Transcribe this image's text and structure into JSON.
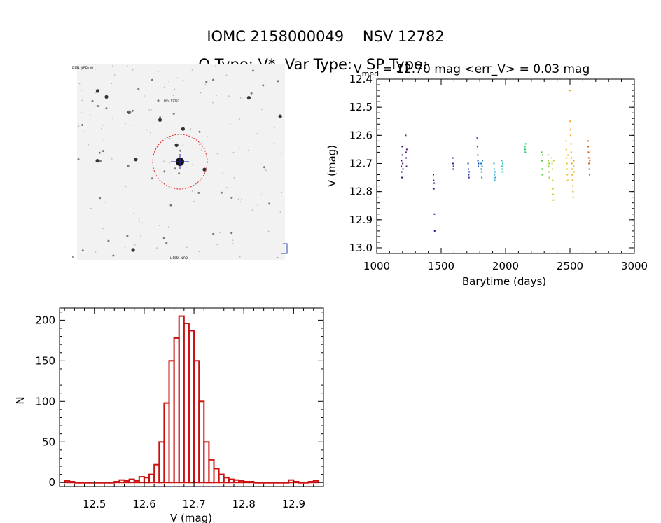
{
  "header": {
    "object_id": "IOMC 2158000049",
    "alt_name": "NSV 12782",
    "o_type_label": "O Type: V*",
    "var_type_label": "Var Type:",
    "sp_type_label": "SP Type:"
  },
  "image_panel": {
    "label_top_left": "DSS1 NIRD red",
    "label_target": "NSV 12782",
    "label_bottom_left": "N",
    "label_bottom_center": "L 1955 NIRD",
    "label_bottom_right": "E"
  },
  "colors": {
    "histogram": "#cc1111",
    "image_background": "#f2f2f2",
    "target_circle": "#dd2222",
    "target_cross": "#2222aa",
    "axes": "#000000"
  },
  "chart_data": [
    {
      "type": "scatter",
      "title": "V_med = 12.70 mag <err_V> = 0.03 mag",
      "title_parts": {
        "v": "V",
        "sub": "med",
        "rest": " = 12.70 mag <err_V> = 0.03 mag"
      },
      "xlabel": "Barytime (days)",
      "ylabel": "V (mag)",
      "xlim": [
        1000,
        3000
      ],
      "ylim": [
        13.02,
        12.4
      ],
      "y_inverted": true,
      "xticks": [
        1000,
        1500,
        2000,
        2500,
        3000
      ],
      "yticks": [
        12.4,
        12.5,
        12.6,
        12.7,
        12.8,
        12.9,
        13.0
      ],
      "ytick_labels": [
        "12.4",
        "12.5",
        "12.6",
        "12.7",
        "12.8",
        "12.9",
        "13.0"
      ],
      "grid": false,
      "groups": [
        {
          "color": "#3a0a6a",
          "points": [
            [
              1190,
              12.71
            ],
            [
              1192,
              12.69
            ],
            [
              1194,
              12.73
            ],
            [
              1196,
              12.75
            ],
            [
              1198,
              12.64
            ],
            [
              1200,
              12.67
            ],
            [
              1202,
              12.7
            ],
            [
              1204,
              12.72
            ]
          ]
        },
        {
          "color": "#5a1a8a",
          "points": [
            [
              1225,
              12.6
            ],
            [
              1227,
              12.66
            ],
            [
              1229,
              12.68
            ],
            [
              1231,
              12.71
            ],
            [
              1233,
              12.65
            ]
          ]
        },
        {
          "color": "#2a1090",
          "points": [
            [
              1440,
              12.74
            ],
            [
              1442,
              12.76
            ],
            [
              1444,
              12.79
            ],
            [
              1446,
              12.77
            ],
            [
              1448,
              12.88
            ],
            [
              1450,
              12.94
            ]
          ]
        },
        {
          "color": "#22209a",
          "points": [
            [
              1590,
              12.68
            ],
            [
              1592,
              12.7
            ],
            [
              1594,
              12.72
            ],
            [
              1596,
              12.71
            ]
          ]
        },
        {
          "color": "#2030a8",
          "points": [
            [
              1710,
              12.7
            ],
            [
              1712,
              12.72
            ],
            [
              1714,
              12.74
            ],
            [
              1716,
              12.75
            ],
            [
              1718,
              12.73
            ]
          ]
        },
        {
          "color": "#1c50b8",
          "points": [
            [
              1780,
              12.61
            ],
            [
              1782,
              12.64
            ],
            [
              1784,
              12.67
            ],
            [
              1786,
              12.69
            ],
            [
              1788,
              12.71
            ],
            [
              1790,
              12.7
            ]
          ]
        },
        {
          "color": "#1580c8",
          "points": [
            [
              1810,
              12.7
            ],
            [
              1812,
              12.72
            ],
            [
              1814,
              12.73
            ],
            [
              1816,
              12.75
            ],
            [
              1818,
              12.71
            ],
            [
              1820,
              12.69
            ]
          ]
        },
        {
          "color": "#10a8c8",
          "points": [
            [
              1910,
              12.7
            ],
            [
              1912,
              12.72
            ],
            [
              1914,
              12.74
            ],
            [
              1916,
              12.76
            ],
            [
              1918,
              12.73
            ],
            [
              1920,
              12.75
            ]
          ]
        },
        {
          "color": "#10c8b0",
          "points": [
            [
              1970,
              12.69
            ],
            [
              1972,
              12.71
            ],
            [
              1974,
              12.72
            ],
            [
              1976,
              12.73
            ],
            [
              1978,
              12.7
            ]
          ]
        },
        {
          "color": "#20d060",
          "points": [
            [
              2150,
              12.64
            ],
            [
              2152,
              12.65
            ],
            [
              2154,
              12.66
            ],
            [
              2156,
              12.63
            ]
          ]
        },
        {
          "color": "#40c830",
          "points": [
            [
              2280,
              12.66
            ],
            [
              2282,
              12.69
            ],
            [
              2284,
              12.72
            ],
            [
              2286,
              12.74
            ],
            [
              2288,
              12.67
            ]
          ]
        },
        {
          "color": "#90d020",
          "points": [
            [
              2330,
              12.67
            ],
            [
              2332,
              12.69
            ],
            [
              2334,
              12.71
            ],
            [
              2336,
              12.73
            ],
            [
              2338,
              12.7
            ],
            [
              2340,
              12.75
            ]
          ]
        },
        {
          "color": "#c8d020",
          "points": [
            [
              2360,
              12.68
            ],
            [
              2362,
              12.7
            ],
            [
              2364,
              12.72
            ],
            [
              2366,
              12.76
            ],
            [
              2368,
              12.79
            ],
            [
              2370,
              12.81
            ],
            [
              2372,
              12.83
            ],
            [
              2374,
              12.69
            ]
          ]
        },
        {
          "color": "#f0c010",
          "points": [
            [
              2470,
              12.62
            ],
            [
              2472,
              12.65
            ],
            [
              2474,
              12.68
            ],
            [
              2476,
              12.7
            ],
            [
              2478,
              12.72
            ],
            [
              2480,
              12.74
            ],
            [
              2482,
              12.76
            ],
            [
              2484,
              12.67
            ]
          ]
        },
        {
          "color": "#f0a010",
          "points": [
            [
              2500,
              12.44
            ],
            [
              2502,
              12.55
            ],
            [
              2504,
              12.58
            ],
            [
              2506,
              12.6
            ],
            [
              2508,
              12.63
            ],
            [
              2510,
              12.66
            ],
            [
              2512,
              12.68
            ],
            [
              2514,
              12.7
            ],
            [
              2516,
              12.72
            ],
            [
              2518,
              12.74
            ],
            [
              2520,
              12.76
            ],
            [
              2522,
              12.78
            ],
            [
              2524,
              12.8
            ],
            [
              2526,
              12.82
            ],
            [
              2528,
              12.71
            ],
            [
              2530,
              12.69
            ],
            [
              2532,
              12.73
            ]
          ]
        },
        {
          "color": "#d05a10",
          "points": [
            [
              2640,
              12.62
            ],
            [
              2642,
              12.64
            ],
            [
              2644,
              12.66
            ],
            [
              2646,
              12.68
            ],
            [
              2648,
              12.7
            ],
            [
              2650,
              12.72
            ],
            [
              2652,
              12.74
            ],
            [
              2654,
              12.69
            ]
          ]
        }
      ]
    },
    {
      "type": "bar",
      "title": "",
      "xlabel": "V (mag)",
      "ylabel": "N",
      "xlim": [
        12.43,
        12.96
      ],
      "ylim": [
        -5,
        215
      ],
      "xticks": [
        12.5,
        12.6,
        12.7,
        12.8,
        12.9
      ],
      "xtick_labels": [
        "12.5",
        "12.6",
        "12.7",
        "12.8",
        "12.9"
      ],
      "yticks": [
        0,
        50,
        100,
        150,
        200
      ],
      "bin_width": 0.01,
      "bin_starts": [
        12.44,
        12.45,
        12.46,
        12.47,
        12.48,
        12.49,
        12.5,
        12.51,
        12.52,
        12.53,
        12.54,
        12.55,
        12.56,
        12.57,
        12.58,
        12.59,
        12.6,
        12.61,
        12.62,
        12.63,
        12.64,
        12.65,
        12.66,
        12.67,
        12.68,
        12.69,
        12.7,
        12.71,
        12.72,
        12.73,
        12.74,
        12.75,
        12.76,
        12.77,
        12.78,
        12.79,
        12.8,
        12.81,
        12.82,
        12.83,
        12.84,
        12.85,
        12.86,
        12.87,
        12.88,
        12.89,
        12.9,
        12.91,
        12.92,
        12.93,
        12.94
      ],
      "values": [
        2,
        1,
        0,
        0,
        0,
        0,
        0,
        0,
        0,
        0,
        1,
        3,
        2,
        4,
        2,
        7,
        6,
        10,
        22,
        50,
        98,
        150,
        178,
        205,
        196,
        187,
        150,
        100,
        50,
        28,
        17,
        10,
        6,
        4,
        3,
        2,
        1,
        1,
        0,
        0,
        0,
        0,
        0,
        0,
        0,
        3,
        1,
        0,
        0,
        1,
        2
      ],
      "grid": false
    }
  ]
}
